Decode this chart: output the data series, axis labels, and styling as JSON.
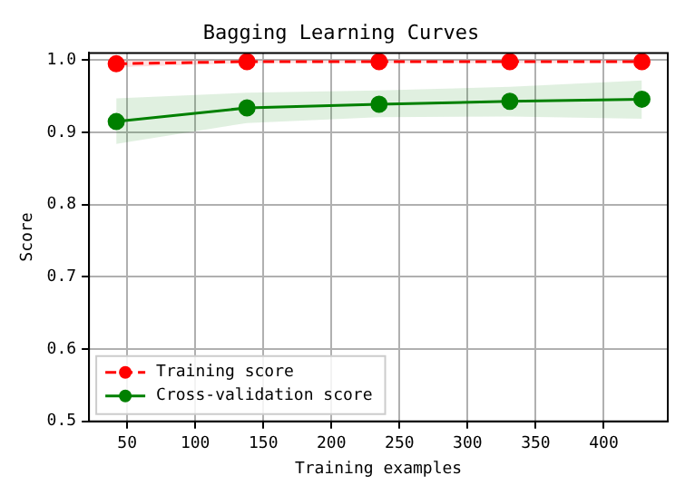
{
  "chart_data": {
    "type": "line",
    "title": "Bagging Learning Curves",
    "xlabel": "Training examples",
    "ylabel": "Score",
    "x": [
      42,
      138,
      235,
      331,
      428
    ],
    "series": [
      {
        "name": "Training score",
        "color": "#ff0000",
        "line_style": "dashed",
        "values": [
          0.995,
          0.998,
          0.998,
          0.998,
          0.998
        ],
        "lower": [
          0.99,
          0.996,
          0.996,
          0.996,
          0.996
        ],
        "upper": [
          1.0,
          1.0,
          1.0,
          1.0,
          1.0
        ]
      },
      {
        "name": "Cross-validation score",
        "color": "#008000",
        "line_style": "solid",
        "values": [
          0.915,
          0.934,
          0.939,
          0.943,
          0.946
        ],
        "lower": [
          0.884,
          0.913,
          0.921,
          0.922,
          0.919
        ],
        "upper": [
          0.947,
          0.955,
          0.958,
          0.963,
          0.972
        ]
      }
    ],
    "xlim": [
      22,
      447
    ],
    "xticks": [
      50,
      100,
      150,
      200,
      250,
      300,
      350,
      400
    ],
    "ylim": [
      0.5,
      1.01
    ],
    "yticks": [
      0.5,
      0.6,
      0.7,
      0.8,
      0.9,
      {
        "value": 1,
        "label": "1.0"
      }
    ],
    "grid": true,
    "legend": "bottom left",
    "marker": "circle"
  }
}
